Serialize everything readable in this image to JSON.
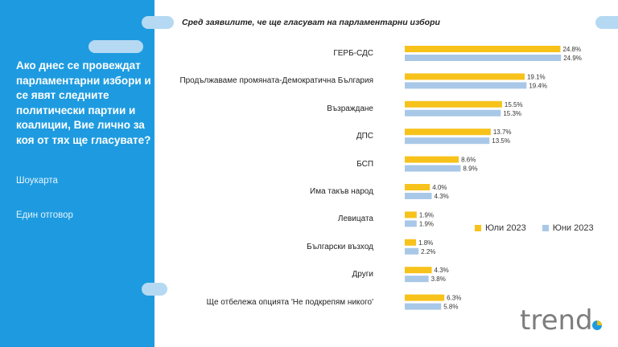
{
  "sidebar": {
    "question": "Ако днес се провеждат парламентарни избори и се явят следните политически партии и коалиции, Вие лично за коя от тях ще гласувате?",
    "method": "Шоукарта",
    "answer_type": "Един отговор"
  },
  "brand": {
    "logo_text": "trend",
    "primary": "#1e9be0",
    "accent": "#e6c21b"
  },
  "chart_data": {
    "type": "bar",
    "orientation": "horizontal",
    "title": "Сред заявилите, че ще гласуват на парламентарни избори",
    "categories": [
      "ГЕРБ-СДС",
      "Продължаваме промяната-Демократична България",
      "Възраждане",
      "ДПС",
      "БСП",
      "Има такъв народ",
      "Левицата",
      "Български възход",
      "Други",
      "Ще отбележа опцията 'Не подкрепям никого'"
    ],
    "series": [
      {
        "name": "Юли 2023",
        "color": "#f7c21a",
        "values": [
          24.8,
          19.1,
          15.5,
          13.7,
          8.6,
          4.0,
          1.9,
          1.8,
          4.3,
          6.3
        ],
        "labels": [
          "24.8%",
          "19.1%",
          "15.5%",
          "13.7%",
          "8.6%",
          "4.0%",
          "1.9%",
          "1.8%",
          "4.3%",
          "6.3%"
        ]
      },
      {
        "name": "Юни 2023",
        "color": "#a9c8e8",
        "values": [
          24.9,
          19.4,
          15.3,
          13.5,
          8.9,
          4.3,
          1.9,
          2.2,
          3.8,
          5.8
        ],
        "labels": [
          "24.9%",
          "19.4%",
          "15.3%",
          "13.5%",
          "8.9%",
          "4.3%",
          "1.9%",
          "2.2%",
          "3.8%",
          "5.8%"
        ]
      }
    ],
    "legend_position": "right",
    "grid": false
  }
}
